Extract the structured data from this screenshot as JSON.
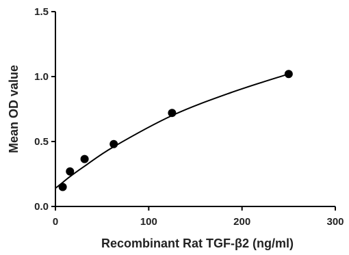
{
  "chart_data": {
    "type": "scatter",
    "title": "",
    "xlabel": "Recombinant Rat TGF-β2 (ng/ml)",
    "ylabel": "Mean OD value",
    "xlim": [
      0,
      300
    ],
    "ylim": [
      0,
      1.5
    ],
    "xticks": [
      0,
      100,
      200,
      300
    ],
    "xtick_labels": [
      "0",
      "100",
      "200",
      "300"
    ],
    "yticks": [
      0,
      0.5,
      1.0,
      1.5
    ],
    "ytick_labels": [
      "0.0",
      "0.5",
      "1.0",
      "1.5"
    ],
    "grid": false,
    "legend": "none",
    "series": [
      {
        "points": [
          {
            "x": 7.8,
            "y": 0.15
          },
          {
            "x": 15.6,
            "y": 0.27
          },
          {
            "x": 31.25,
            "y": 0.365
          },
          {
            "x": 62.5,
            "y": 0.48
          },
          {
            "x": 125,
            "y": 0.72
          },
          {
            "x": 250,
            "y": 1.02
          }
        ]
      }
    ],
    "fit_curve": {
      "type": "smooth",
      "x": [
        0,
        7.8,
        15.6,
        31.25,
        62.5,
        125,
        187.5,
        250
      ],
      "y": [
        0.14,
        0.185,
        0.23,
        0.31,
        0.46,
        0.7,
        0.875,
        1.02
      ]
    },
    "colors": {
      "marker": "#000000",
      "line": "#000000",
      "axis": "#000000"
    }
  }
}
